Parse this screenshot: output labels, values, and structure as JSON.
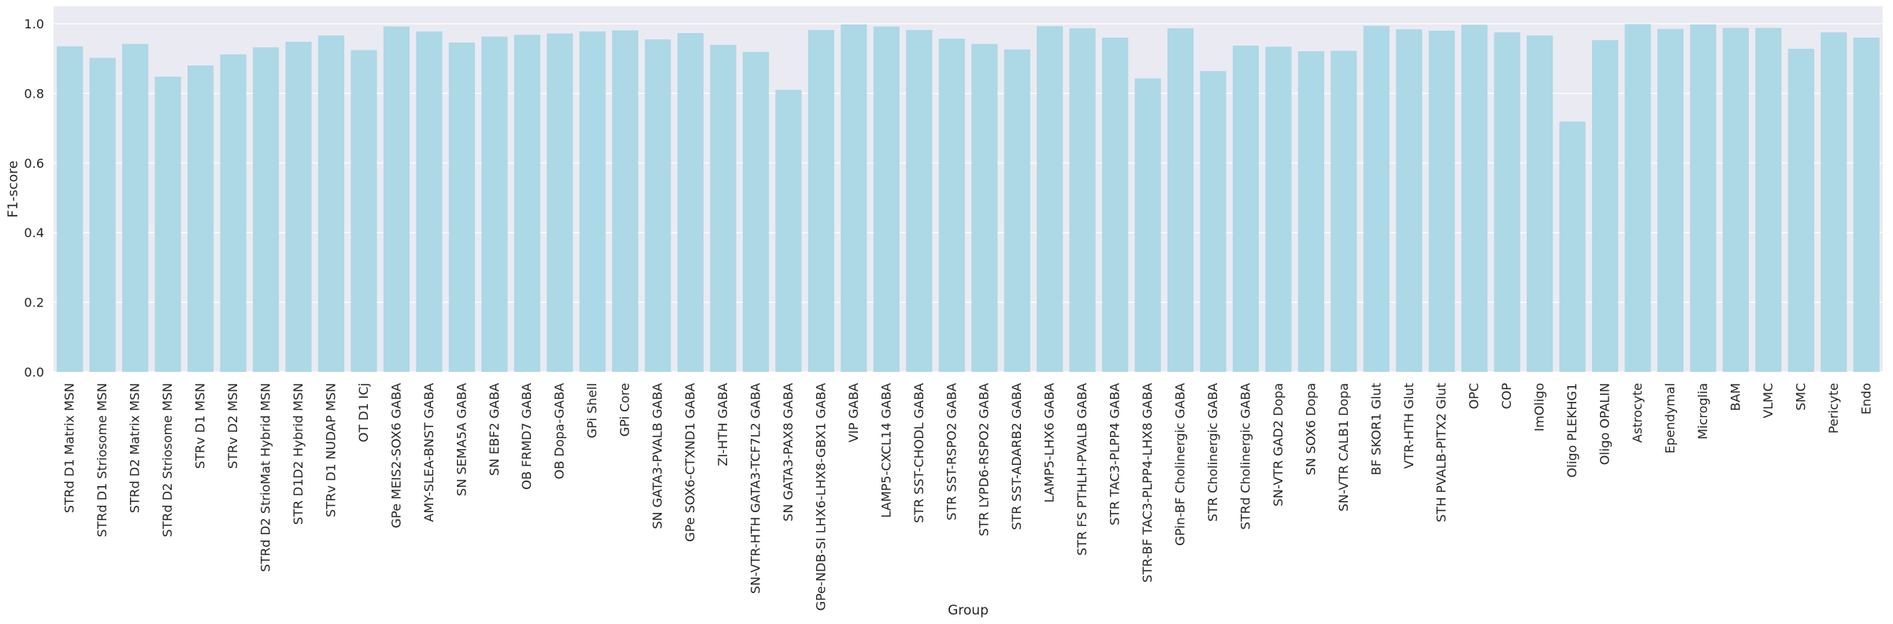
{
  "chart_data": {
    "type": "bar",
    "title": "",
    "xlabel": "Group",
    "ylabel": "F1-score",
    "ylim": [
      0,
      1.05
    ],
    "yticks": [
      0.0,
      0.2,
      0.4,
      0.6,
      0.8,
      1.0
    ],
    "ytick_labels": [
      "0.0",
      "0.2",
      "0.4",
      "0.6",
      "0.8",
      "1.0"
    ],
    "grid": true,
    "bar_color": "#add8e6",
    "background_color": "#eaeaf2",
    "categories": [
      "STRd D1 Matrix MSN",
      "STRd D1 Striosome MSN",
      "STRd D2 Matrix MSN",
      "STRd D2 Striosome MSN",
      "STRv D1 MSN",
      "STRv D2 MSN",
      "STRd D2 StrioMat Hybrid MSN",
      "STR D1D2 Hybrid MSN",
      "STRv D1 NUDAP MSN",
      "OT D1 ICj",
      "GPe MEIS2-SOX6 GABA",
      "AMY-SLEA-BNST GABA",
      "SN SEMA5A GABA",
      "SN EBF2 GABA",
      "OB FRMD7 GABA",
      "OB Dopa-GABA",
      "GPi Shell",
      "GPi Core",
      "SN GATA3-PVALB GABA",
      "GPe SOX6-CTXND1 GABA",
      "ZI-HTH GABA",
      "SN-VTR-HTH GATA3-TCF7L2 GABA",
      "SN GATA3-PAX8 GABA",
      "GPe-NDB-SI LHX6-LHX8-GBX1 GABA",
      "VIP GABA",
      "LAMP5-CXCL14 GABA",
      "STR SST-CHODL GABA",
      "STR SST-RSPO2 GABA",
      "STR LYPD6-RSPO2 GABA",
      "STR SST-ADARB2 GABA",
      "LAMP5-LHX6 GABA",
      "STR FS PTHLH-PVALB GABA",
      "STR TAC3-PLPP4 GABA",
      "STR-BF TAC3-PLPP4-LHX8 GABA",
      "GPin-BF Cholinergic GABA",
      "STR Cholinergic GABA",
      "STRd Cholinergic GABA",
      "SN-VTR GAD2 Dopa",
      "SN SOX6 Dopa",
      "SN-VTR CALB1 Dopa",
      "BF SKOR1 Glut",
      "VTR-HTH Glut",
      "STH PVALB-PITX2 Glut",
      "OPC",
      "COP",
      "ImOligo",
      "Oligo PLEKHG1",
      "Oligo OPALIN",
      "Astrocyte",
      "Ependymal",
      "Microglia",
      "BAM",
      "VLMC",
      "SMC",
      "Pericyte",
      "Endo"
    ],
    "values": [
      0.935,
      0.902,
      0.942,
      0.848,
      0.88,
      0.912,
      0.932,
      0.948,
      0.966,
      0.924,
      0.992,
      0.978,
      0.946,
      0.963,
      0.968,
      0.972,
      0.978,
      0.981,
      0.955,
      0.973,
      0.939,
      0.919,
      0.81,
      0.982,
      0.998,
      0.992,
      0.982,
      0.957,
      0.942,
      0.926,
      0.993,
      0.987,
      0.96,
      0.843,
      0.987,
      0.864,
      0.937,
      0.934,
      0.921,
      0.922,
      0.994,
      0.984,
      0.98,
      0.997,
      0.975,
      0.966,
      0.719,
      0.953,
      0.999,
      0.985,
      0.998,
      0.988,
      0.988,
      0.928,
      0.975,
      0.96
    ]
  }
}
